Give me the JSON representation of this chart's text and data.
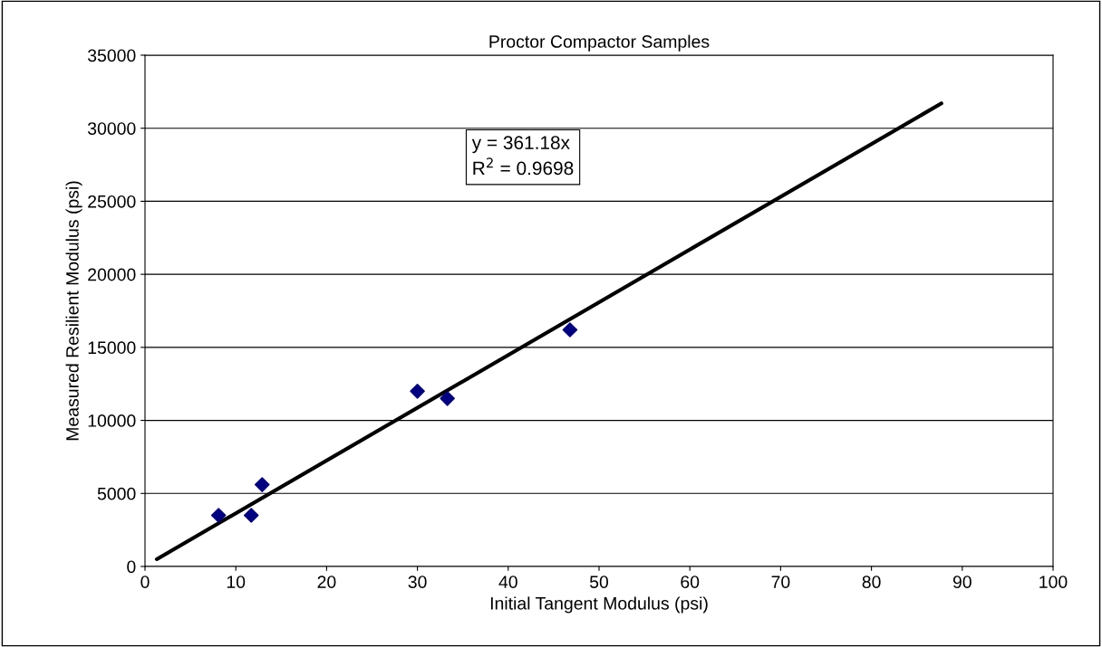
{
  "chart_data": {
    "type": "scatter",
    "title": "Proctor Compactor Samples",
    "xlabel": "Initial Tangent Modulus (psi)",
    "ylabel": "Measured Resilient Modulus (psi)",
    "series": [
      {
        "color": "#000080",
        "marker": "diamond",
        "x": [
          8.1,
          11.7,
          12.9,
          30.0,
          33.3,
          46.8
        ],
        "values": [
          3500,
          3500,
          5600,
          12000,
          11500,
          16200
        ]
      },
      {
        "type": "line",
        "color": "#000000",
        "marker": "none",
        "line_style": "solid",
        "x": [
          1.3,
          87.7
        ],
        "values": [
          500,
          31700
        ]
      }
    ],
    "annotations": [
      "y = 361.18x\nR$^{2}$ = 0.9698"
    ],
    "xlim": [
      0,
      100
    ],
    "xticks": [
      0,
      10,
      20,
      30,
      40,
      50,
      60,
      70,
      80,
      90,
      100
    ],
    "ylim": [
      0,
      35000
    ],
    "yticks": [
      0,
      5000,
      10000,
      15000,
      20000,
      25000,
      30000,
      35000
    ],
    "grid": "y",
    "legend": false
  }
}
